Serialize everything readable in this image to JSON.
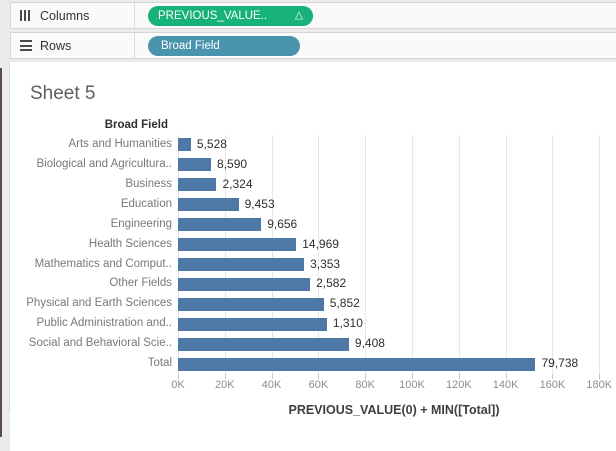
{
  "shelves": {
    "columns": {
      "label": "Columns",
      "pill": {
        "text": "PREVIOUS_VALUE..",
        "delta_icon": "△",
        "color": "#17b27a"
      }
    },
    "rows": {
      "label": "Rows",
      "pill": {
        "text": "Broad Field",
        "color": "#4a94ad"
      }
    }
  },
  "sheet": {
    "title": "Sheet 5",
    "row_field_header": "Broad Field"
  },
  "chart_data": {
    "type": "bar",
    "orientation": "horizontal",
    "title": "Sheet 5",
    "categories": [
      "Arts and Humanities",
      "Biological and Agricultura..",
      "Business",
      "Education",
      "Engineering",
      "Health Sciences",
      "Mathematics and Comput..",
      "Other Fields",
      "Physical and Earth Sciences",
      "Public Administration and..",
      "Social and Behavioral Scie..",
      "Total"
    ],
    "value_labels": [
      "5,528",
      "8,590",
      "2,324",
      "9,453",
      "9,656",
      "14,969",
      "3,353",
      "2,582",
      "5,852",
      "1,310",
      "9,408",
      "79,738"
    ],
    "values": [
      5528,
      8590,
      2324,
      9453,
      9656,
      14969,
      3353,
      2582,
      5852,
      1310,
      9408,
      79738
    ],
    "bar_lengths_running_total": [
      5528,
      14118,
      16442,
      25895,
      35551,
      50520,
      53873,
      56455,
      62307,
      63617,
      73025,
      152763
    ],
    "xlabel": "PREVIOUS_VALUE(0) + MIN([Total])",
    "x_tick_values": [
      0,
      20000,
      40000,
      60000,
      80000,
      100000,
      120000,
      140000,
      160000,
      180000
    ],
    "x_tick_labels": [
      "0K",
      "20K",
      "40K",
      "60K",
      "80K",
      "100K",
      "120K",
      "140K",
      "160K",
      "180K"
    ],
    "xlim": [
      0,
      184600
    ],
    "grid": true,
    "legend": false,
    "bar_color": "#4e79a7",
    "note": "bar length encodes running total; data label shows per-row value"
  }
}
